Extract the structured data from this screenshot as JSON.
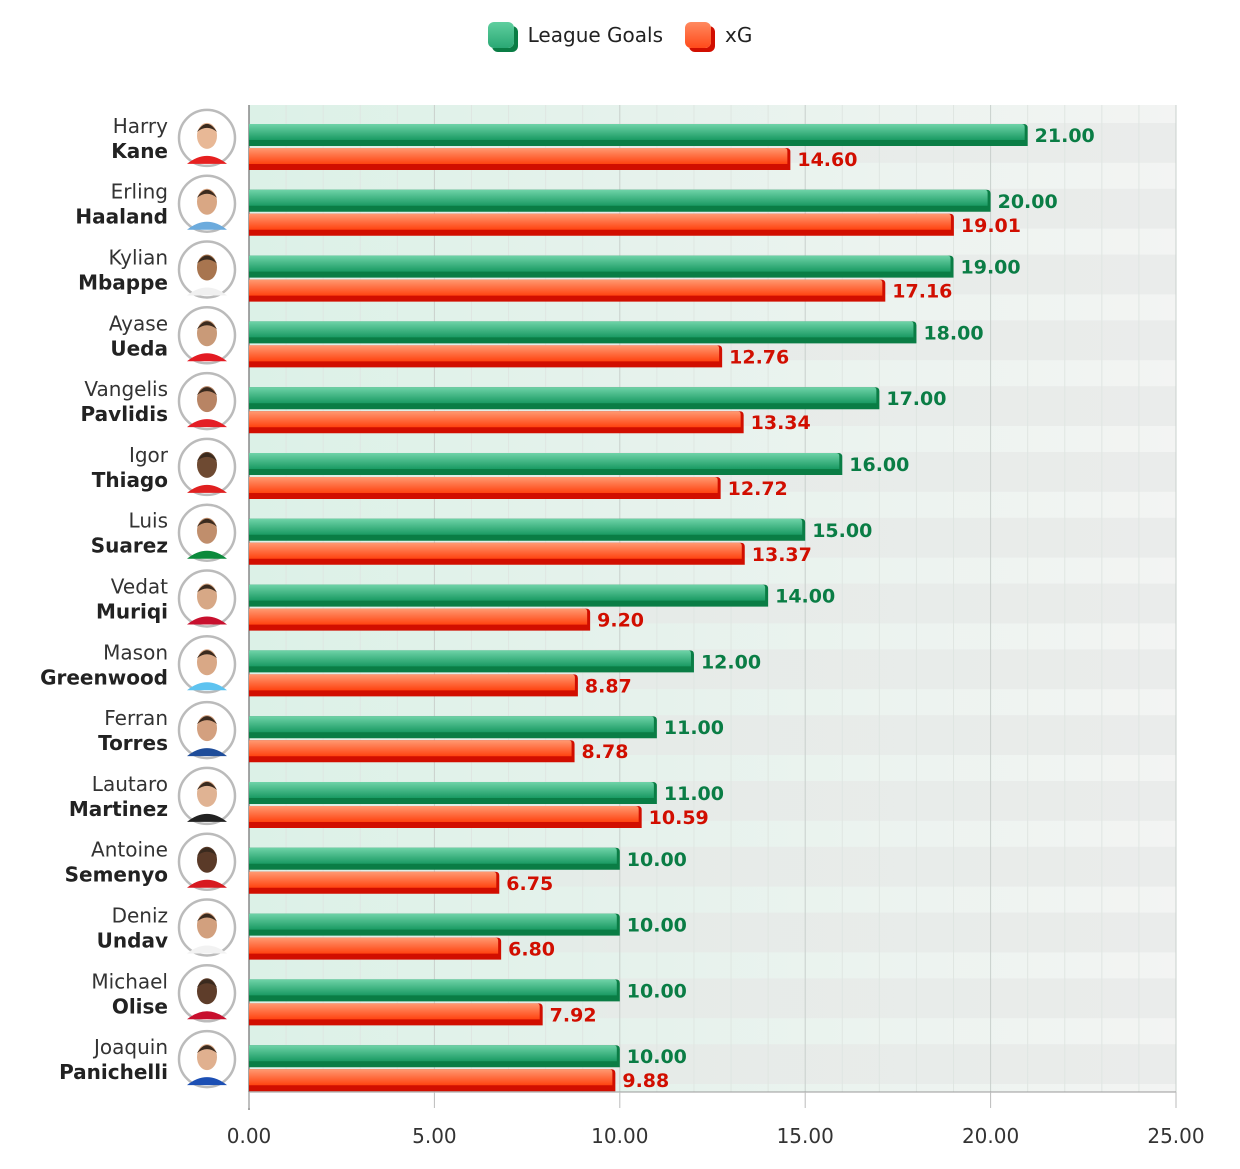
{
  "chart_data": {
    "type": "bar",
    "orientation": "horizontal",
    "categories": [
      {
        "first": "Harry",
        "last": "Kane"
      },
      {
        "first": "Erling",
        "last": "Haaland"
      },
      {
        "first": "Kylian",
        "last": "Mbappe"
      },
      {
        "first": "Ayase",
        "last": "Ueda"
      },
      {
        "first": "Vangelis",
        "last": "Pavlidis"
      },
      {
        "first": "Igor",
        "last": "Thiago"
      },
      {
        "first": "Luis",
        "last": "Suarez"
      },
      {
        "first": "Vedat",
        "last": "Muriqi"
      },
      {
        "first": "Mason",
        "last": "Greenwood"
      },
      {
        "first": "Ferran",
        "last": "Torres"
      },
      {
        "first": "Lautaro",
        "last": "Martinez"
      },
      {
        "first": "Antoine",
        "last": "Semenyo"
      },
      {
        "first": "Deniz",
        "last": "Undav"
      },
      {
        "first": "Michael",
        "last": "Olise"
      },
      {
        "first": "Joaquin",
        "last": "Panichelli"
      }
    ],
    "series": [
      {
        "name": "League Goals",
        "color": "#0a7d45",
        "light": "#5fcf9f",
        "values": [
          21.0,
          20.0,
          19.0,
          18.0,
          17.0,
          16.0,
          15.0,
          14.0,
          12.0,
          11.0,
          11.0,
          10.0,
          10.0,
          10.0,
          10.0
        ]
      },
      {
        "name": "xG",
        "color": "#d10e00",
        "light": "#ff8a60",
        "values": [
          14.6,
          19.01,
          17.16,
          12.76,
          13.34,
          12.72,
          13.37,
          9.2,
          8.87,
          8.78,
          10.59,
          6.75,
          6.8,
          7.92,
          9.88
        ]
      }
    ],
    "xlim": [
      0,
      25
    ],
    "xticks": [
      "0.00",
      "5.00",
      "10.00",
      "15.00",
      "20.00",
      "25.00"
    ],
    "grid": true,
    "legend": "top-center",
    "data_labels": true,
    "player_photos": true
  }
}
